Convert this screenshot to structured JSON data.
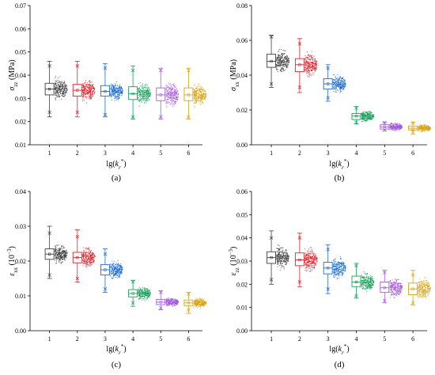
{
  "colors": [
    "#3f3f3f",
    "#e0202a",
    "#1e6ad6",
    "#1aa05a",
    "#a45ae0",
    "#d9a414"
  ],
  "chart_data": [
    {
      "type": "box",
      "panel_label": "(a)",
      "ylabel": {
        "sym": "σ",
        "sub": "zz",
        "unit": " (MPa)"
      },
      "xlabel": {
        "pre": "lg(",
        "var": "k",
        "sub": "r",
        "sup": "*",
        "post": ")"
      },
      "categories": [
        "1",
        "2",
        "3",
        "4",
        "5",
        "6"
      ],
      "ylim": [
        0.01,
        0.07
      ],
      "yticks": [
        0.01,
        0.02,
        0.03,
        0.04,
        0.05,
        0.06,
        0.07
      ],
      "ytick_labels": [
        "0.01",
        "0.02",
        "0.03",
        "0.04",
        "0.05",
        "0.06",
        "0.07"
      ],
      "series": [
        {
          "category": "1",
          "min": 0.022,
          "q1": 0.0315,
          "median": 0.034,
          "mean": 0.034,
          "q3": 0.0365,
          "max": 0.046,
          "outliers": [
            0.024,
            0.044
          ]
        },
        {
          "category": "2",
          "min": 0.022,
          "q1": 0.031,
          "median": 0.0335,
          "mean": 0.0335,
          "q3": 0.036,
          "max": 0.046,
          "outliers": [
            0.024,
            0.044
          ]
        },
        {
          "category": "3",
          "min": 0.022,
          "q1": 0.031,
          "median": 0.033,
          "mean": 0.033,
          "q3": 0.0355,
          "max": 0.045,
          "outliers": [
            0.023,
            0.043
          ]
        },
        {
          "category": "4",
          "min": 0.021,
          "q1": 0.0295,
          "median": 0.032,
          "mean": 0.032,
          "q3": 0.035,
          "max": 0.044,
          "outliers": [
            0.022,
            0.042
          ]
        },
        {
          "category": "5",
          "min": 0.021,
          "q1": 0.029,
          "median": 0.0315,
          "mean": 0.0315,
          "q3": 0.0345,
          "max": 0.043,
          "outliers": [
            0.022,
            0.042
          ]
        },
        {
          "category": "6",
          "min": 0.021,
          "q1": 0.029,
          "median": 0.0315,
          "mean": 0.0315,
          "q3": 0.0345,
          "max": 0.043,
          "outliers": [
            0.022,
            0.042
          ]
        }
      ]
    },
    {
      "type": "box",
      "panel_label": "(b)",
      "ylabel": {
        "sym": "σ",
        "sub": "xx",
        "unit": " (MPa)"
      },
      "xlabel": {
        "pre": "lg(",
        "var": "k",
        "sub": "r",
        "sup": "*",
        "post": ")"
      },
      "categories": [
        "1",
        "2",
        "3",
        "4",
        "5",
        "6"
      ],
      "ylim": [
        0.0,
        0.08
      ],
      "yticks": [
        0.0,
        0.02,
        0.04,
        0.06,
        0.08
      ],
      "ytick_labels": [
        "0.00",
        "0.02",
        "0.04",
        "0.06",
        "0.08"
      ],
      "series": [
        {
          "category": "1",
          "min": 0.033,
          "q1": 0.0445,
          "median": 0.048,
          "mean": 0.048,
          "q3": 0.052,
          "max": 0.063,
          "outliers": [
            0.035,
            0.062
          ]
        },
        {
          "category": "2",
          "min": 0.03,
          "q1": 0.042,
          "median": 0.046,
          "mean": 0.046,
          "q3": 0.0495,
          "max": 0.061,
          "outliers": [
            0.033,
            0.058
          ]
        },
        {
          "category": "3",
          "min": 0.025,
          "q1": 0.032,
          "median": 0.035,
          "mean": 0.035,
          "q3": 0.038,
          "max": 0.046,
          "outliers": [
            0.027,
            0.044
          ]
        },
        {
          "category": "4",
          "min": 0.012,
          "q1": 0.0145,
          "median": 0.0165,
          "mean": 0.0165,
          "q3": 0.018,
          "max": 0.022,
          "outliers": [
            0.013,
            0.021
          ]
        },
        {
          "category": "5",
          "min": 0.008,
          "q1": 0.009,
          "median": 0.0103,
          "mean": 0.0103,
          "q3": 0.0115,
          "max": 0.013,
          "outliers": [
            0.0085,
            0.0128
          ]
        },
        {
          "category": "6",
          "min": 0.006,
          "q1": 0.0085,
          "median": 0.0095,
          "mean": 0.0095,
          "q3": 0.0108,
          "max": 0.013,
          "outliers": [
            0.0075,
            0.0125
          ]
        }
      ]
    },
    {
      "type": "box",
      "panel_label": "(c)",
      "ylabel": {
        "sym": "ε",
        "sub": "xx",
        "unit": " (10",
        "unit_sup": "−3",
        "unit_post": ")"
      },
      "xlabel": {
        "pre": "lg(",
        "var": "k",
        "sub": "r",
        "sup": "*",
        "post": ")"
      },
      "categories": [
        "1",
        "2",
        "3",
        "4",
        "5",
        "6"
      ],
      "ylim": [
        0.0,
        0.04
      ],
      "yticks": [
        0.0,
        0.01,
        0.02,
        0.03,
        0.04
      ],
      "ytick_labels": [
        "0.00",
        "0.01",
        "0.02",
        "0.03",
        "0.04"
      ],
      "series": [
        {
          "category": "1",
          "min": 0.015,
          "q1": 0.0205,
          "median": 0.022,
          "mean": 0.022,
          "q3": 0.0235,
          "max": 0.03,
          "outliers": [
            0.016,
            0.028
          ]
        },
        {
          "category": "2",
          "min": 0.014,
          "q1": 0.0195,
          "median": 0.021,
          "mean": 0.021,
          "q3": 0.0225,
          "max": 0.029,
          "outliers": [
            0.015,
            0.027
          ]
        },
        {
          "category": "3",
          "min": 0.011,
          "q1": 0.016,
          "median": 0.0175,
          "mean": 0.0175,
          "q3": 0.019,
          "max": 0.0235,
          "outliers": [
            0.012,
            0.022
          ]
        },
        {
          "category": "4",
          "min": 0.007,
          "q1": 0.0097,
          "median": 0.0107,
          "mean": 0.0107,
          "q3": 0.0118,
          "max": 0.0145,
          "outliers": [
            0.008,
            0.014
          ]
        },
        {
          "category": "5",
          "min": 0.006,
          "q1": 0.0075,
          "median": 0.0082,
          "mean": 0.0082,
          "q3": 0.009,
          "max": 0.0115,
          "outliers": [
            0.0065,
            0.011
          ]
        },
        {
          "category": "6",
          "min": 0.005,
          "q1": 0.0072,
          "median": 0.008,
          "mean": 0.008,
          "q3": 0.0088,
          "max": 0.011,
          "outliers": [
            0.006,
            0.0105
          ]
        }
      ]
    },
    {
      "type": "box",
      "panel_label": "(d)",
      "ylabel": {
        "sym": "ε",
        "sub": "zz",
        "unit": " (10",
        "unit_sup": "−3",
        "unit_post": ")"
      },
      "xlabel": {
        "pre": "lg(",
        "var": "k",
        "sub": "r",
        "sup": "*",
        "post": ")"
      },
      "categories": [
        "1",
        "2",
        "3",
        "4",
        "5",
        "6"
      ],
      "ylim": [
        0.0,
        0.06
      ],
      "yticks": [
        0.0,
        0.01,
        0.02,
        0.03,
        0.04,
        0.05,
        0.06
      ],
      "ytick_labels": [
        "0.00",
        "0.01",
        "0.02",
        "0.03",
        "0.04",
        "0.05",
        "0.06"
      ],
      "series": [
        {
          "category": "1",
          "min": 0.02,
          "q1": 0.029,
          "median": 0.0315,
          "mean": 0.0315,
          "q3": 0.034,
          "max": 0.043,
          "outliers": [
            0.022,
            0.04
          ]
        },
        {
          "category": "2",
          "min": 0.019,
          "q1": 0.028,
          "median": 0.0305,
          "mean": 0.0305,
          "q3": 0.0335,
          "max": 0.042,
          "outliers": [
            0.021,
            0.04
          ]
        },
        {
          "category": "3",
          "min": 0.016,
          "q1": 0.0245,
          "median": 0.027,
          "mean": 0.027,
          "q3": 0.0295,
          "max": 0.037,
          "outliers": [
            0.018,
            0.035
          ]
        },
        {
          "category": "4",
          "min": 0.014,
          "q1": 0.019,
          "median": 0.021,
          "mean": 0.021,
          "q3": 0.0235,
          "max": 0.029,
          "outliers": [
            0.015,
            0.028
          ]
        },
        {
          "category": "5",
          "min": 0.012,
          "q1": 0.0165,
          "median": 0.0185,
          "mean": 0.0185,
          "q3": 0.021,
          "max": 0.026,
          "outliers": [
            0.013,
            0.025
          ]
        },
        {
          "category": "6",
          "min": 0.011,
          "q1": 0.0155,
          "median": 0.018,
          "mean": 0.018,
          "q3": 0.0205,
          "max": 0.026,
          "outliers": [
            0.012,
            0.024
          ]
        }
      ]
    }
  ]
}
